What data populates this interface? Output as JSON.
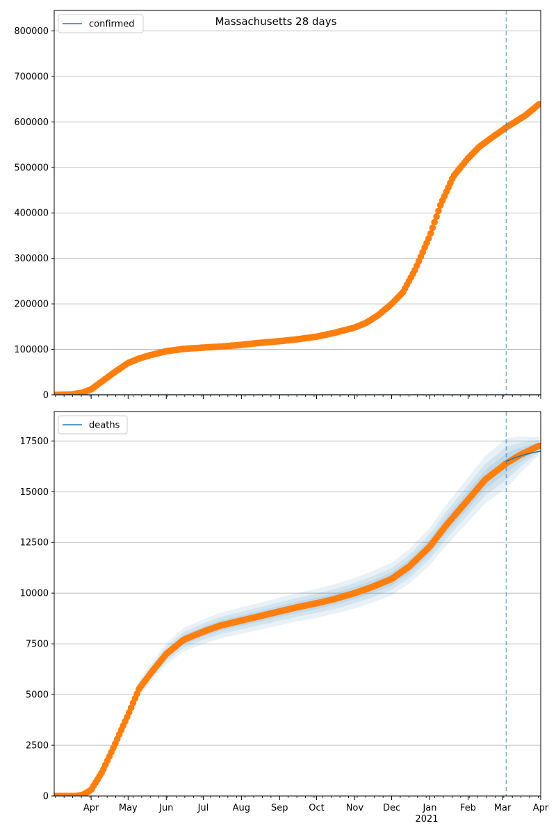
{
  "figure": {
    "title": "Massachusetts 28 days",
    "year_label": "2021"
  },
  "colors": {
    "model_line": "#1f77b4",
    "observed_points": "#ff7f0e",
    "band_fill": "#1f77b4",
    "forecast_marker": "#1f77b4",
    "grid": "#b0b0b0"
  },
  "chart_data": [
    {
      "type": "line",
      "title": "Massachusetts 28 days",
      "legend": {
        "label": "confirmed",
        "placement": "top-left"
      },
      "x_ticks": [
        "Apr",
        "May",
        "Jun",
        "Jul",
        "Aug",
        "Sep",
        "Oct",
        "Nov",
        "Dec",
        "Jan",
        "Feb",
        "Mar",
        "Apr"
      ],
      "y_ticks": [
        0,
        100000,
        200000,
        300000,
        400000,
        500000,
        600000,
        700000,
        800000
      ],
      "xlim": [
        "2020-03-02",
        "2021-04-01"
      ],
      "ylim": [
        0,
        845000
      ],
      "grid": "horizontal",
      "forecast_start": "2021-03-04",
      "series": [
        {
          "name": "confirmed",
          "style": "line",
          "x": [
            "2020-03-02",
            "2021-04-01"
          ],
          "y": [
            0,
            0
          ]
        },
        {
          "style": "points",
          "x": [
            "2020-03-02",
            "2020-03-15",
            "2020-03-25",
            "2020-04-01",
            "2020-04-10",
            "2020-04-20",
            "2020-05-01",
            "2020-05-10",
            "2020-05-20",
            "2020-06-01",
            "2020-06-15",
            "2020-07-01",
            "2020-07-15",
            "2020-08-01",
            "2020-08-15",
            "2020-09-01",
            "2020-09-15",
            "2020-10-01",
            "2020-10-15",
            "2020-11-01",
            "2020-11-10",
            "2020-11-20",
            "2020-12-01",
            "2020-12-10",
            "2020-12-20",
            "2021-01-01",
            "2021-01-10",
            "2021-01-20",
            "2021-02-01",
            "2021-02-10",
            "2021-02-20",
            "2021-03-01",
            "2021-03-04",
            "2021-03-10",
            "2021-03-20",
            "2021-04-01"
          ],
          "y": [
            0,
            500,
            5000,
            12000,
            30000,
            50000,
            70000,
            80000,
            88000,
            96000,
            101000,
            104000,
            106000,
            110000,
            114000,
            118000,
            122000,
            128000,
            136000,
            148000,
            158000,
            175000,
            200000,
            225000,
            275000,
            350000,
            420000,
            480000,
            520000,
            545000,
            565000,
            582000,
            588000,
            598000,
            615000,
            642000
          ]
        }
      ]
    },
    {
      "type": "line",
      "legend": {
        "label": "deaths",
        "placement": "top-left"
      },
      "x_ticks": [
        "Apr",
        "May",
        "Jun",
        "Jul",
        "Aug",
        "Sep",
        "Oct",
        "Nov",
        "Dec",
        "Jan",
        "Feb",
        "Mar",
        "Apr"
      ],
      "y_ticks": [
        0,
        2500,
        5000,
        7500,
        10000,
        12500,
        15000,
        17500
      ],
      "xlim": [
        "2020-03-02",
        "2021-04-01"
      ],
      "ylim": [
        0,
        18950
      ],
      "grid": "horizontal",
      "forecast_start": "2021-03-04",
      "series": [
        {
          "name": "deaths",
          "style": "line",
          "x": [
            "2021-03-04",
            "2021-03-10",
            "2021-03-20",
            "2021-04-01"
          ],
          "y": [
            16500,
            16650,
            16850,
            17000
          ]
        },
        {
          "style": "points",
          "x": [
            "2020-03-02",
            "2020-03-20",
            "2020-03-25",
            "2020-04-01",
            "2020-04-10",
            "2020-04-20",
            "2020-04-25",
            "2020-05-01",
            "2020-05-10",
            "2020-05-20",
            "2020-06-01",
            "2020-06-15",
            "2020-07-01",
            "2020-07-15",
            "2020-08-01",
            "2020-08-15",
            "2020-09-01",
            "2020-09-15",
            "2020-10-01",
            "2020-10-15",
            "2020-11-01",
            "2020-11-15",
            "2020-12-01",
            "2020-12-15",
            "2021-01-01",
            "2021-01-15",
            "2021-02-01",
            "2021-02-15",
            "2021-03-01",
            "2021-03-04",
            "2021-03-15",
            "2021-04-01"
          ],
          "y": [
            0,
            0,
            50,
            300,
            1200,
            2500,
            3200,
            4000,
            5300,
            6100,
            7000,
            7700,
            8100,
            8400,
            8650,
            8850,
            9100,
            9300,
            9500,
            9700,
            10000,
            10300,
            10700,
            11300,
            12300,
            13400,
            14600,
            15600,
            16250,
            16400,
            16800,
            17300
          ]
        }
      ]
    }
  ]
}
